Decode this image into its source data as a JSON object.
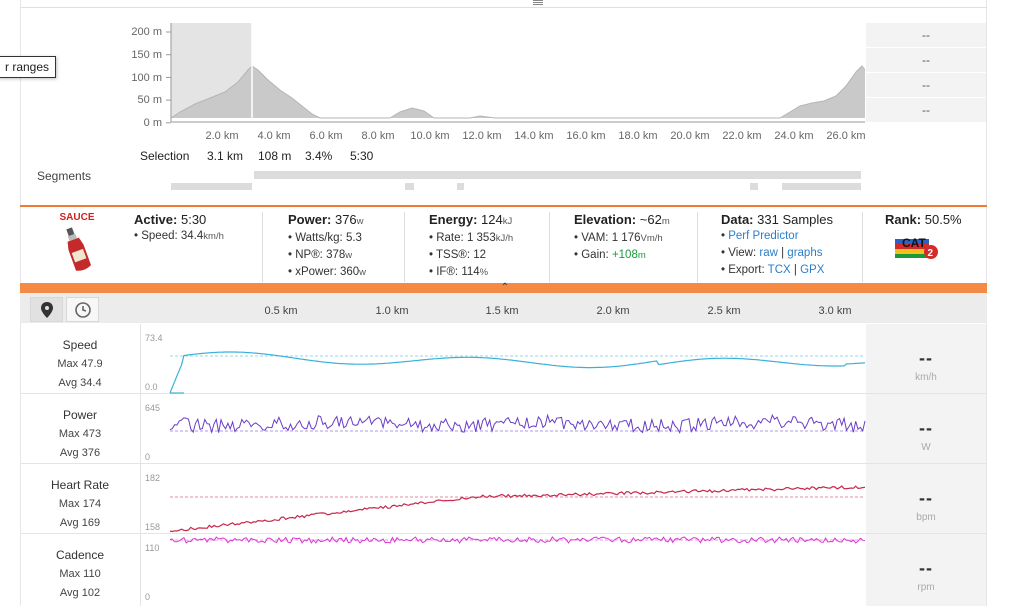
{
  "tooltip": {
    "text": "r ranges"
  },
  "elevation_chart": {
    "y_ticks": [
      "200 m",
      "150 m",
      "100 m",
      "50 m",
      "0 m"
    ],
    "x_ticks": [
      "2.0 km",
      "4.0 km",
      "6.0 km",
      "8.0 km",
      "10.0 km",
      "12.0 km",
      "14.0 km",
      "16.0 km",
      "18.0 km",
      "20.0 km",
      "22.0 km",
      "24.0 km",
      "26.0 km"
    ],
    "side_values": [
      "--",
      "--",
      "--",
      "--"
    ]
  },
  "selection": {
    "label": "Selection",
    "distance": "3.1 km",
    "elevation": "108 m",
    "grade": "3.4%",
    "time": "5:30"
  },
  "segments": {
    "label": "Segments"
  },
  "logo": {
    "text": "SAUCE"
  },
  "stats": {
    "active": {
      "title": "Active:",
      "value": "5:30",
      "speed_label": "Speed:",
      "speed_value": "34.4",
      "speed_unit": "km/h"
    },
    "power": {
      "title": "Power:",
      "value": "376",
      "unit": "w",
      "wkg_label": "Watts/kg:",
      "wkg_value": "5.3",
      "np_label": "NP®:",
      "np_value": "378",
      "np_unit": "w",
      "xp_label": "xPower:",
      "xp_value": "360",
      "xp_unit": "w"
    },
    "energy": {
      "title": "Energy:",
      "value": "124",
      "unit": "kJ",
      "rate_label": "Rate:",
      "rate_value": "1 353",
      "rate_unit": "kJ/h",
      "tss_label": "TSS®:",
      "tss_value": "12",
      "if_label": "IF®:",
      "if_value": "114",
      "if_unit": "%"
    },
    "elevation": {
      "title": "Elevation:",
      "value": "~62",
      "unit": "m",
      "vam_label": "VAM:",
      "vam_value": "1 176",
      "vam_unit": "Vm/h",
      "gain_label": "Gain:",
      "gain_value": "+108",
      "gain_unit": "m"
    },
    "data": {
      "title": "Data:",
      "value": "331 Samples",
      "perf_link": "Perf Predictor",
      "view_label": "View:",
      "view_raw": "raw",
      "view_sep": "|",
      "view_graphs": "graphs",
      "export_label": "Export:",
      "export_tcx": "TCX",
      "export_sep": "|",
      "export_gpx": "GPX"
    },
    "rank": {
      "title": "Rank:",
      "value": "50.5%",
      "badge_text": "CAT",
      "badge_num": "2"
    }
  },
  "toolbar": {
    "x_ticks": [
      "0.5 km",
      "1.0 km",
      "1.5 km",
      "2.0 km",
      "2.5 km",
      "3.0 km"
    ]
  },
  "graphs": [
    {
      "name": "Speed",
      "max_label": "Max 47.9",
      "avg_label": "Avg 34.4",
      "ymax": "73.4",
      "ymin": "0.0",
      "side": "--",
      "unit": "km/h",
      "color": "#3ab0d8"
    },
    {
      "name": "Power",
      "max_label": "Max 473",
      "avg_label": "Avg 376",
      "ymax": "645",
      "ymin": "0",
      "side": "--",
      "unit": "W",
      "color": "#6a3cc8"
    },
    {
      "name": "Heart Rate",
      "max_label": "Max 174",
      "avg_label": "Avg 169",
      "ymax": "182",
      "ymin": "158",
      "side": "--",
      "unit": "bpm",
      "color": "#c8264e"
    },
    {
      "name": "Cadence",
      "max_label": "Max 110",
      "avg_label": "Avg 102",
      "ymax": "110",
      "ymin": "0",
      "side": "--",
      "unit": "rpm",
      "color": "#d838d0"
    }
  ],
  "colors": {
    "accent": "#f07a32",
    "accent_bar": "#f58a45",
    "link": "#2a7fc9",
    "gain": "#1a9a3a"
  }
}
